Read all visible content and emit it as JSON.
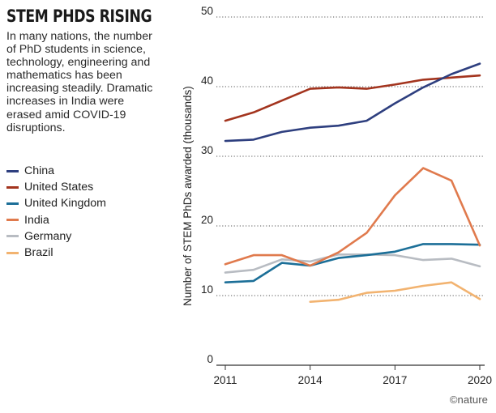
{
  "title": "STEM PHDS RISING",
  "subtitle": "In many nations, the number of PhD students in science, technology, engineering and mathematics has been increasing steadily. Dramatic increases in India were erased amid COVID-19 disruptions.",
  "credit": "©nature",
  "chart_data": {
    "type": "line",
    "title": "STEM PHDS RISING",
    "xlabel": "",
    "ylabel": "Number of STEM PhDs awarded (thousands)",
    "xlim": [
      2011,
      2020
    ],
    "ylim": [
      0,
      50
    ],
    "x_ticks": [
      "2011",
      "2014",
      "2017",
      "2020"
    ],
    "y_ticks": [
      "0",
      "10",
      "20",
      "30",
      "40",
      "50"
    ],
    "grid": "horizontal dotted",
    "legend_position": "left",
    "series": [
      {
        "name": "China",
        "color": "#2e3f7f",
        "x": [
          2011,
          2012,
          2013,
          2014,
          2015,
          2016,
          2017,
          2018,
          2019,
          2020
        ],
        "values": [
          32.2,
          32.4,
          33.5,
          34.1,
          34.4,
          35.1,
          37.6,
          39.9,
          41.8,
          43.3
        ]
      },
      {
        "name": "United States",
        "color": "#a3341e",
        "x": [
          2011,
          2012,
          2013,
          2014,
          2015,
          2016,
          2017,
          2018,
          2019,
          2020
        ],
        "values": [
          35.1,
          36.3,
          38.0,
          39.7,
          39.9,
          39.7,
          40.3,
          41.0,
          41.3,
          41.6
        ]
      },
      {
        "name": "United Kingdom",
        "color": "#1c6f98",
        "x": [
          2011,
          2012,
          2013,
          2014,
          2015,
          2016,
          2017,
          2018,
          2019,
          2020
        ],
        "values": [
          11.9,
          12.1,
          14.7,
          14.3,
          15.4,
          15.8,
          16.3,
          17.4,
          17.4,
          17.3
        ]
      },
      {
        "name": "India",
        "color": "#e07a4d",
        "x": [
          2011,
          2012,
          2013,
          2014,
          2015,
          2016,
          2017,
          2018,
          2019,
          2020
        ],
        "values": [
          14.5,
          15.8,
          15.8,
          14.3,
          16.2,
          19.0,
          24.4,
          28.3,
          26.5,
          17.2
        ]
      },
      {
        "name": "Germany",
        "color": "#b8bcc2",
        "x": [
          2011,
          2012,
          2013,
          2014,
          2015,
          2016,
          2017,
          2018,
          2019,
          2020
        ],
        "values": [
          13.3,
          13.7,
          15.2,
          14.9,
          15.9,
          15.9,
          15.8,
          15.1,
          15.3,
          14.2
        ]
      },
      {
        "name": "Brazil",
        "color": "#f2b370",
        "x": [
          2014,
          2015,
          2016,
          2017,
          2018,
          2019,
          2020
        ],
        "values": [
          9.1,
          9.4,
          10.4,
          10.7,
          11.4,
          11.9,
          9.5
        ]
      }
    ]
  }
}
